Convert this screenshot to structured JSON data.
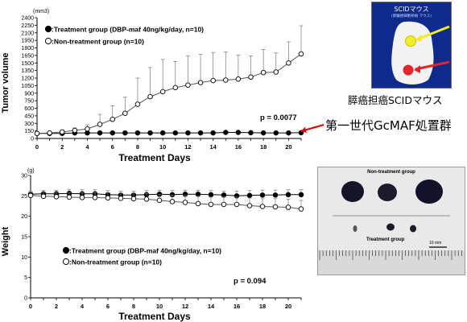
{
  "chart_data": [
    {
      "type": "line",
      "unit_label": "(mm3)",
      "xlabel": "Treatment Days",
      "ylabel": "Tumor volume",
      "xlim": [
        0,
        21
      ],
      "ylim": [
        0,
        2400
      ],
      "x_ticks": [
        0,
        2,
        4,
        6,
        8,
        10,
        12,
        14,
        16,
        18,
        20
      ],
      "y_ticks": [
        0,
        150,
        300,
        450,
        600,
        750,
        900,
        1050,
        1200,
        1350,
        1500,
        1650,
        1800,
        1950,
        2100,
        2250,
        2400
      ],
      "grid": false,
      "legend_position": "top-left",
      "annotation": "p = 0.0077",
      "series": [
        {
          "name": ":Treatment group (DBP-maf 40ng/kg/day, n=10)",
          "marker": "filled-circle",
          "x": [
            0,
            1,
            2,
            3,
            4,
            5,
            6,
            7,
            8,
            9,
            10,
            11,
            12,
            13,
            14,
            15,
            16,
            17,
            18,
            19,
            20,
            21
          ],
          "y": [
            100,
            100,
            100,
            110,
            110,
            110,
            110,
            110,
            110,
            110,
            110,
            110,
            110,
            110,
            110,
            120,
            120,
            115,
            110,
            110,
            110,
            115
          ],
          "err": [
            10,
            10,
            12,
            14,
            14,
            14,
            16,
            16,
            16,
            16,
            16,
            16,
            18,
            18,
            18,
            20,
            20,
            20,
            18,
            18,
            18,
            18
          ]
        },
        {
          "name": ":Non-treatment group (n=10)",
          "marker": "open-circle",
          "x": [
            0,
            1,
            2,
            3,
            4,
            5,
            6,
            7,
            8,
            9,
            10,
            11,
            12,
            13,
            14,
            15,
            16,
            17,
            18,
            19,
            20,
            21
          ],
          "y": [
            100,
            110,
            130,
            160,
            190,
            280,
            380,
            500,
            680,
            830,
            930,
            1010,
            1060,
            1110,
            1150,
            1160,
            1180,
            1220,
            1310,
            1320,
            1500,
            1680
          ],
          "err": [
            20,
            25,
            35,
            50,
            80,
            200,
            270,
            320,
            520,
            580,
            640,
            520,
            580,
            560,
            560,
            560,
            480,
            420,
            460,
            380,
            420,
            560
          ]
        }
      ]
    },
    {
      "type": "line",
      "unit_label": "(g)",
      "xlabel": "Treatment Days",
      "ylabel": "Weight",
      "xlim": [
        0,
        21
      ],
      "ylim": [
        0,
        30
      ],
      "x_ticks": [
        0,
        2,
        4,
        6,
        8,
        10,
        12,
        14,
        16,
        18,
        20
      ],
      "y_ticks": [
        0,
        5,
        10,
        15,
        20,
        25,
        30
      ],
      "grid": false,
      "legend_position": "bottom-left",
      "annotation": "p = 0.094",
      "series": [
        {
          "name": ":Treatment group (DBP-maf 40ng/kg/day, n=10)",
          "marker": "filled-circle",
          "x": [
            0,
            1,
            2,
            3,
            4,
            5,
            6,
            7,
            8,
            9,
            10,
            11,
            12,
            13,
            14,
            15,
            16,
            17,
            18,
            19,
            20,
            21
          ],
          "y": [
            25.4,
            25.5,
            25.5,
            25.6,
            25.5,
            25.5,
            25.3,
            25.2,
            25.2,
            25.3,
            25.4,
            25.3,
            25.4,
            25.4,
            25.3,
            25.2,
            25.0,
            25.1,
            25.2,
            25.2,
            25.3,
            25.3
          ],
          "err": [
            0.8,
            0.8,
            0.9,
            1.0,
            1.0,
            1.0,
            1.0,
            1.0,
            1.0,
            1.0,
            1.0,
            1.0,
            1.0,
            1.0,
            1.0,
            1.0,
            1.2,
            1.2,
            1.2,
            1.2,
            1.2,
            1.2
          ]
        },
        {
          "name": ":Non-treatment group (n=10)",
          "marker": "open-circle",
          "x": [
            0,
            1,
            2,
            3,
            4,
            5,
            6,
            7,
            8,
            9,
            10,
            11,
            12,
            13,
            14,
            15,
            16,
            17,
            18,
            19,
            20,
            21
          ],
          "y": [
            25.1,
            24.9,
            24.8,
            24.7,
            24.6,
            24.6,
            24.5,
            24.4,
            24.3,
            24.2,
            23.9,
            23.6,
            23.4,
            23.1,
            22.9,
            22.9,
            22.9,
            22.6,
            22.4,
            22.3,
            22.2,
            21.8
          ],
          "err": [
            0.8,
            1.0,
            1.0,
            1.1,
            1.2,
            1.2,
            1.3,
            1.3,
            1.4,
            1.4,
            1.5,
            1.6,
            1.7,
            1.8,
            1.8,
            1.8,
            1.8,
            1.9,
            1.9,
            2.0,
            2.0,
            2.1
          ]
        }
      ]
    }
  ],
  "arrow_label": "第一世代GcMAF処置群",
  "arrow_color": "#e00000",
  "mouse_photo": {
    "caption": "膵癌担癌SCIDマウス",
    "title": "SCIDマウス",
    "subtitle": "(膵臓癌細胞移植 マウス)"
  },
  "tumor_photo": {
    "upper_label": "Non-treatment group",
    "lower_label": "Treatment group",
    "scale_label": "10 mm"
  }
}
